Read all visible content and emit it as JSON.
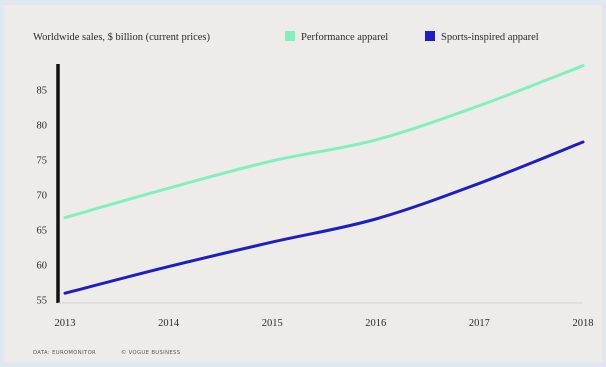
{
  "chart_data": {
    "type": "line",
    "title": "Worldwide sales, $ billion (current prices)",
    "x": [
      "2013",
      "2014",
      "2015",
      "2016",
      "2017",
      "2018"
    ],
    "series": [
      {
        "name": "Performance apparel",
        "color": "#7ff0be",
        "values": [
          66.7,
          70.9,
          74.8,
          77.8,
          82.7,
          88.4
        ]
      },
      {
        "name": "Sports-inspired apparel",
        "color": "#1e1ec8",
        "values": [
          55.9,
          59.7,
          63.2,
          66.5,
          71.6,
          77.5
        ]
      }
    ],
    "yticks": [
      55,
      60,
      65,
      70,
      75,
      80,
      85
    ],
    "ylim": [
      54.5,
      89.5
    ],
    "grid": false,
    "legend_position": "top-right"
  },
  "footer": {
    "source": "DATA: EUROMONITOR",
    "credit": "© VOGUE BUSINESS"
  }
}
